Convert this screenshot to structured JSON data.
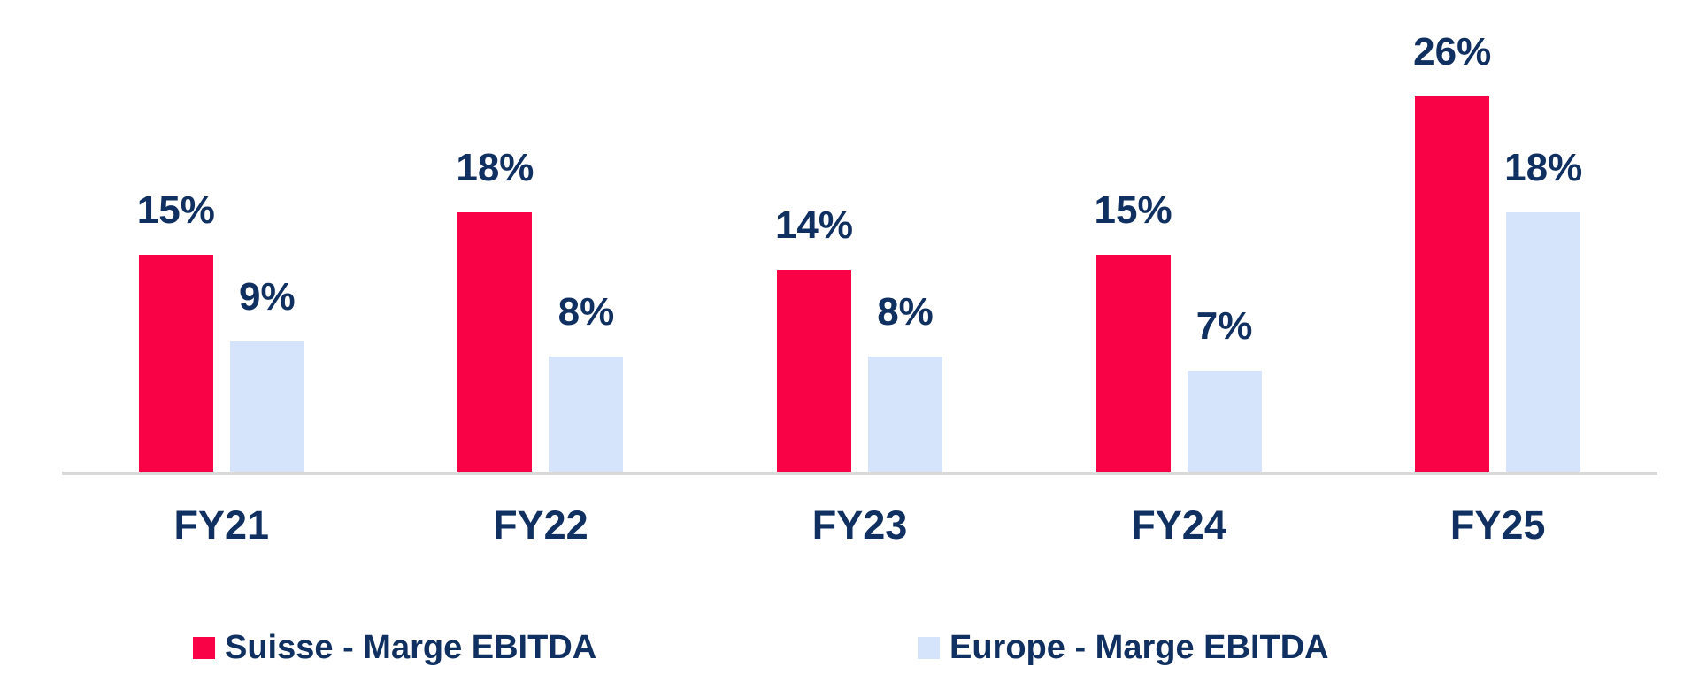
{
  "chart_data": {
    "type": "bar",
    "categories": [
      "FY21",
      "FY22",
      "FY23",
      "FY24",
      "FY25"
    ],
    "series": [
      {
        "name": "Suisse - Marge EBITDA",
        "color": "#FA0346",
        "values": [
          15,
          18,
          14,
          15,
          26
        ]
      },
      {
        "name": "Europe - Marge EBITDA",
        "color": "#D5E4FB",
        "values": [
          9,
          8,
          8,
          7,
          18
        ]
      }
    ],
    "unit": "%",
    "data_labels": {
      "suisse": [
        "15%",
        "18%",
        "14%",
        "15%",
        "26%"
      ],
      "europe": [
        "9%",
        "8%",
        "8%",
        "7%",
        "18%"
      ]
    },
    "title": "",
    "xlabel": "",
    "ylabel": "",
    "ylim": [
      0,
      30
    ],
    "grid": false,
    "y_axis_visible": false,
    "legend_position": "bottom"
  },
  "colors": {
    "suisse_bar": "#FA0346",
    "europe_bar": "#D5E4FB",
    "label_text": "#0F3060",
    "axis_line": "#D9D9D9",
    "background": "#FFFFFF"
  }
}
